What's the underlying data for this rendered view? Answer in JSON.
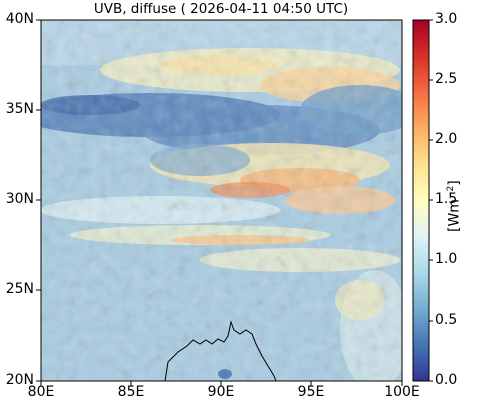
{
  "title": "UVB, diffuse ( 2026-04-11 04:50 UTC)",
  "map": {
    "lon_ticks": [
      "80E",
      "85E",
      "90E",
      "95E",
      "100E"
    ],
    "lat_ticks": [
      "40N",
      "35N",
      "30N",
      "25N",
      "20N"
    ],
    "lon_range": [
      80,
      100
    ],
    "lat_range": [
      20,
      40
    ]
  },
  "colorbar": {
    "label_main": "[Wm",
    "label_exp": "−2",
    "label_end": "]",
    "ticks": [
      "3.0",
      "2.5",
      "2.0",
      "1.5",
      "1.0",
      "0.5",
      "0.0"
    ],
    "range": [
      0.0,
      3.0
    ],
    "colormap": [
      "#313695",
      "#4575b4",
      "#74add1",
      "#abd9e9",
      "#e0f3f8",
      "#ffffbf",
      "#fee090",
      "#fdae61",
      "#f46d43",
      "#d73027",
      "#a50026"
    ]
  }
}
